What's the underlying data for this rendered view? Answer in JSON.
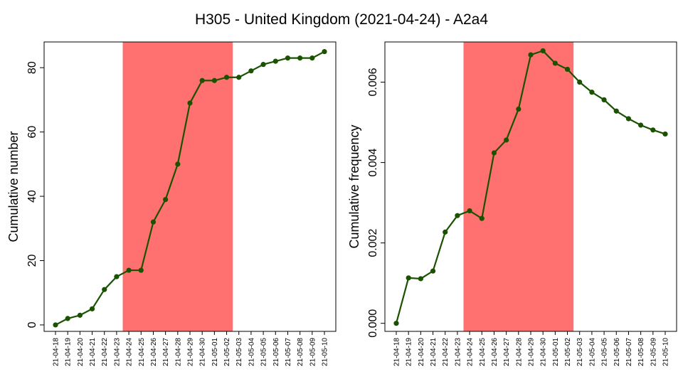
{
  "title": "H305 - United Kingdom (2021-04-24) - A2a4",
  "colors": {
    "line": "#1a5200",
    "highlight": "#ff7070",
    "axis": "#000000"
  },
  "chart_data": [
    {
      "type": "line",
      "ylabel": "Cumulative number",
      "ylim": [
        -2,
        88
      ],
      "yticks": [
        0,
        20,
        40,
        60,
        80
      ],
      "ytick_labels": [
        "0",
        "20",
        "40",
        "60",
        "80"
      ],
      "highlight_range": [
        "21-04-24",
        "21-05-02"
      ],
      "x": [
        "21-04-18",
        "21-04-19",
        "21-04-20",
        "21-04-21",
        "21-04-22",
        "21-04-23",
        "21-04-24",
        "21-04-25",
        "21-04-26",
        "21-04-27",
        "21-04-28",
        "21-04-29",
        "21-04-30",
        "21-05-01",
        "21-05-02",
        "21-05-03",
        "21-05-04",
        "21-05-05",
        "21-05-06",
        "21-05-07",
        "21-05-08",
        "21-05-09",
        "21-05-10"
      ],
      "series": [
        {
          "values": [
            0,
            2,
            3,
            5,
            11,
            15,
            17,
            17,
            32,
            39,
            50,
            69,
            76,
            76,
            77,
            77,
            79,
            81,
            82,
            83,
            83,
            83,
            85
          ]
        }
      ]
    },
    {
      "type": "line",
      "ylabel": "Cumulative frequency",
      "ylim": [
        -0.0002,
        0.007
      ],
      "yticks": [
        0,
        0.002,
        0.004,
        0.006
      ],
      "ytick_labels": [
        "0.000",
        "0.002",
        "0.004",
        "0.006"
      ],
      "highlight_range": [
        "21-04-24",
        "21-05-02"
      ],
      "x": [
        "21-04-18",
        "21-04-19",
        "21-04-20",
        "21-04-21",
        "21-04-22",
        "21-04-23",
        "21-04-24",
        "21-04-25",
        "21-04-26",
        "21-04-27",
        "21-04-28",
        "21-04-29",
        "21-04-30",
        "21-05-01",
        "21-05-02",
        "21-05-03",
        "21-05-04",
        "21-05-05",
        "21-05-06",
        "21-05-07",
        "21-05-08",
        "21-05-09",
        "21-05-10"
      ],
      "series": [
        {
          "values": [
            0,
            0.00113,
            0.00111,
            0.0013,
            0.00227,
            0.00268,
            0.0028,
            0.00261,
            0.00424,
            0.00456,
            0.00533,
            0.00668,
            0.00678,
            0.00647,
            0.00632,
            0.006,
            0.00575,
            0.00556,
            0.00528,
            0.00509,
            0.00493,
            0.00481,
            0.00471
          ]
        }
      ]
    }
  ]
}
